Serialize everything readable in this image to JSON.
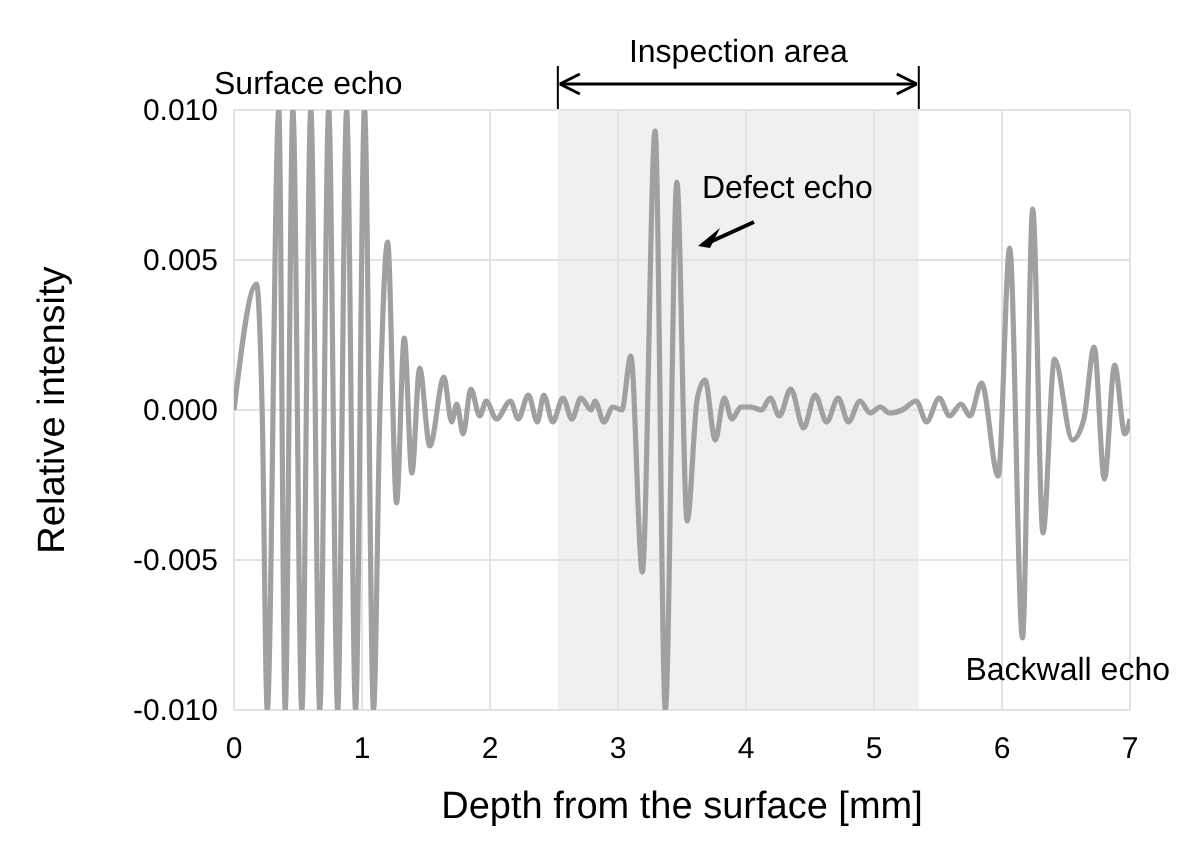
{
  "chart_data": {
    "type": "line",
    "xlabel": "Depth from the surface [mm]",
    "ylabel": "Relative intensity",
    "x": [
      0,
      0.176,
      0.22,
      0.26,
      0.35,
      0.4,
      0.46,
      0.53,
      0.6,
      0.67,
      0.74,
      0.81,
      0.88,
      0.95,
      1.02,
      1.09,
      1.14,
      1.2,
      1.27,
      1.33,
      1.39,
      1.45,
      1.53,
      1.64,
      1.7,
      1.74,
      1.79,
      1.85,
      1.92,
      1.97,
      2.05,
      2.16,
      2.22,
      2.3,
      2.37,
      2.42,
      2.49,
      2.57,
      2.64,
      2.71,
      2.79,
      2.82,
      2.89,
      2.96,
      3.03,
      3.1,
      3.19,
      3.29,
      3.37,
      3.46,
      3.54,
      3.62,
      3.68,
      3.76,
      3.83,
      3.89,
      3.96,
      4.04,
      4.12,
      4.19,
      4.26,
      4.35,
      4.45,
      4.54,
      4.63,
      4.72,
      4.8,
      4.89,
      4.97,
      5.05,
      5.12,
      5.22,
      5.33,
      5.41,
      5.51,
      5.59,
      5.68,
      5.75,
      5.84,
      5.97,
      6.06,
      6.16,
      6.24,
      6.32,
      6.41,
      6.55,
      6.64,
      6.72,
      6.8,
      6.88,
      6.96,
      7.0
    ],
    "series": [
      {
        "color": "#a0a0a0",
        "values": [
          0,
          0.0042,
          0,
          -0.01,
          0.01,
          -0.01,
          0.01,
          -0.01,
          0.01,
          -0.01,
          0.01,
          -0.01,
          0.01,
          -0.01,
          0.01,
          -0.01,
          0,
          0.0056,
          -0.0031,
          0.0024,
          -0.0021,
          0.0014,
          -0.0012,
          0.0011,
          -0.0004,
          0.0002,
          -0.0008,
          0.0007,
          -0.0002,
          0.0003,
          -0.0003,
          0.0003,
          -0.0003,
          0.0005,
          -0.0004,
          0.0005,
          -0.0004,
          0.0004,
          -0.0003,
          0.0004,
          0,
          0.0003,
          -0.0004,
          0.0001,
          0,
          0.0018,
          -0.0054,
          0.0093,
          -0.01,
          0.0076,
          -0.0037,
          0.0004,
          0.001,
          -0.001,
          0.0004,
          -0.0003,
          0.0001,
          0.0001,
          0,
          0.0004,
          -0.0002,
          0.0007,
          -0.0006,
          0.0005,
          -0.0004,
          0.0004,
          -0.0004,
          0.0003,
          -0.0001,
          0.0001,
          -0.0001,
          0,
          0.0003,
          -0.0004,
          0.0004,
          -0.0002,
          0.0002,
          -0.0002,
          0.0009,
          -0.0022,
          0.0054,
          -0.0076,
          0.0067,
          -0.0041,
          0.0017,
          -0.001,
          -0.0003,
          0.0021,
          -0.0023,
          0.0015,
          -0.0008,
          -0.0003
        ]
      }
    ],
    "xlim": [
      0,
      7
    ],
    "xticks": [
      0,
      1,
      2,
      3,
      4,
      5,
      6,
      7
    ],
    "ylim": [
      -0.01,
      0.01
    ],
    "yticks": [
      {
        "value": -0.01,
        "label": "-0.010"
      },
      {
        "value": -0.005,
        "label": "-0.005"
      },
      {
        "value": 0,
        "label": "0.000"
      },
      {
        "value": 0.005,
        "label": "0.005"
      },
      {
        "value": 0.01,
        "label": "0.010"
      }
    ],
    "grid": true,
    "bands": [
      {
        "axis": "x",
        "from": 2.53,
        "to": 5.35,
        "label": "Inspection area",
        "color": "#f0f0f0"
      }
    ],
    "annotations": [
      "Surface echo",
      "Defect echo",
      "Backwall echo"
    ]
  }
}
